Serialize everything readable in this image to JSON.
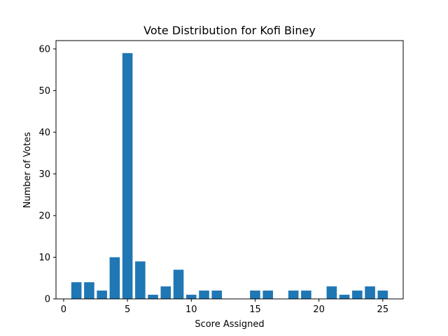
{
  "chart_data": {
    "type": "bar",
    "title": "Vote Distribution for Kofi Biney",
    "xlabel": "Score Assigned",
    "ylabel": "Number of Votes",
    "x": [
      1,
      2,
      3,
      4,
      5,
      6,
      7,
      8,
      9,
      10,
      11,
      12,
      15,
      16,
      18,
      19,
      21,
      22,
      23,
      24,
      25
    ],
    "values": [
      4,
      4,
      2,
      10,
      59,
      9,
      1,
      3,
      7,
      1,
      2,
      2,
      2,
      2,
      2,
      2,
      3,
      1,
      2,
      3,
      2
    ],
    "xlim": [
      -0.6,
      26.6
    ],
    "ylim": [
      0,
      62
    ],
    "xticks": [
      0,
      5,
      10,
      15,
      20,
      25
    ],
    "yticks": [
      0,
      10,
      20,
      30,
      40,
      50,
      60
    ],
    "bar_color": "#1f77b4",
    "grid": false,
    "legend": "none"
  }
}
